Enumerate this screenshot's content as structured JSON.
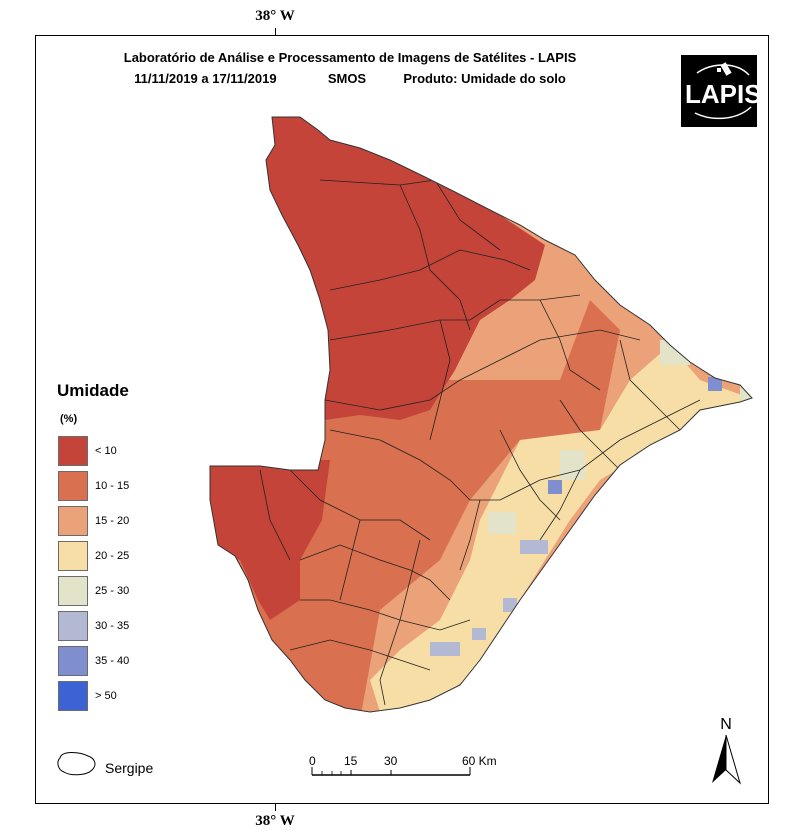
{
  "coords": {
    "top": "38° W",
    "bottom": "38° W"
  },
  "title": {
    "line1": "Laboratório de Análise e Processamento de Imagens de Satélites - LAPIS",
    "date": "11/11/2019  a 17/11/2019",
    "sensor": "SMOS",
    "product": "Produto: Umidade do solo"
  },
  "logo": {
    "text": "LAPIS",
    "icon": "satellite-icon"
  },
  "legend": {
    "title": "Umidade",
    "unit": "(%)",
    "classes": [
      {
        "label": "< 10",
        "color": "#c4443a"
      },
      {
        "label": "10 - 15",
        "color": "#d9704f"
      },
      {
        "label": "15 - 20",
        "color": "#eca279"
      },
      {
        "label": "20 - 25",
        "color": "#f7dea6"
      },
      {
        "label": "25 - 30",
        "color": "#e2e3c8"
      },
      {
        "label": "30 - 35",
        "color": "#b3b9d3"
      },
      {
        "label": "35 - 40",
        "color": "#7f8ecf"
      },
      {
        "label": "> 50",
        "color": "#3d62d3"
      }
    ]
  },
  "state_label": "Sergipe",
  "scale": {
    "labels": [
      "0",
      "15",
      "30",
      "60 Km"
    ]
  },
  "north": "N"
}
